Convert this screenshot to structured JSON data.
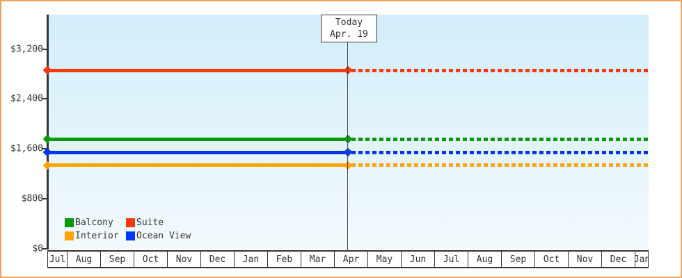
{
  "window": {
    "border_color": "#eba45c",
    "background_color": "#ffffff"
  },
  "chart": {
    "plot": {
      "bg_gradient_top": "#d2eefa",
      "bg_gradient_bottom": "#f3fafd",
      "axis_color": "#333333",
      "text_color": "#333333"
    },
    "today_box": {
      "line1": "Today",
      "line2": "Apr. 19"
    }
  },
  "chart_data": {
    "type": "line",
    "title": "",
    "xlabel": "",
    "ylabel": "",
    "categories": [
      "Jul",
      "Aug",
      "Sep",
      "Oct",
      "Nov",
      "Dec",
      "Jan",
      "Feb",
      "Mar",
      "Apr",
      "May",
      "Jun",
      "Jul",
      "Aug",
      "Sep",
      "Oct",
      "Nov",
      "Dec",
      "Jan"
    ],
    "y_ticks": [
      {
        "label": "$0",
        "value": 0
      },
      {
        "label": "$800",
        "value": 800
      },
      {
        "label": "$1,600",
        "value": 1600
      },
      {
        "label": "$2,400",
        "value": 2400
      },
      {
        "label": "$3,200",
        "value": 3200
      }
    ],
    "ylim": [
      0,
      3750
    ],
    "grid": false,
    "series": [
      {
        "name": "Suite",
        "color": "#f6380b",
        "value": 2860,
        "style_before_today": "solid",
        "style_after_today": "dotted"
      },
      {
        "name": "Balcony",
        "color": "#089b08",
        "value": 1755,
        "style_before_today": "solid",
        "style_after_today": "dotted"
      },
      {
        "name": "Ocean View",
        "color": "#0336f5",
        "value": 1545,
        "style_before_today": "solid",
        "style_after_today": "dotted"
      },
      {
        "name": "Interior",
        "color": "#ffa408",
        "value": 1340,
        "style_before_today": "solid",
        "style_after_today": "dotted"
      }
    ],
    "annotation": {
      "label": "Today Apr. 19",
      "month": "Apr",
      "day": 19
    },
    "legend": {
      "position": "bottom-left",
      "items": [
        {
          "label": "Balcony",
          "color": "#089b08"
        },
        {
          "label": "Suite",
          "color": "#f6380b"
        },
        {
          "label": "Interior",
          "color": "#ffa408"
        },
        {
          "label": "Ocean View",
          "color": "#0336f5"
        }
      ]
    }
  }
}
